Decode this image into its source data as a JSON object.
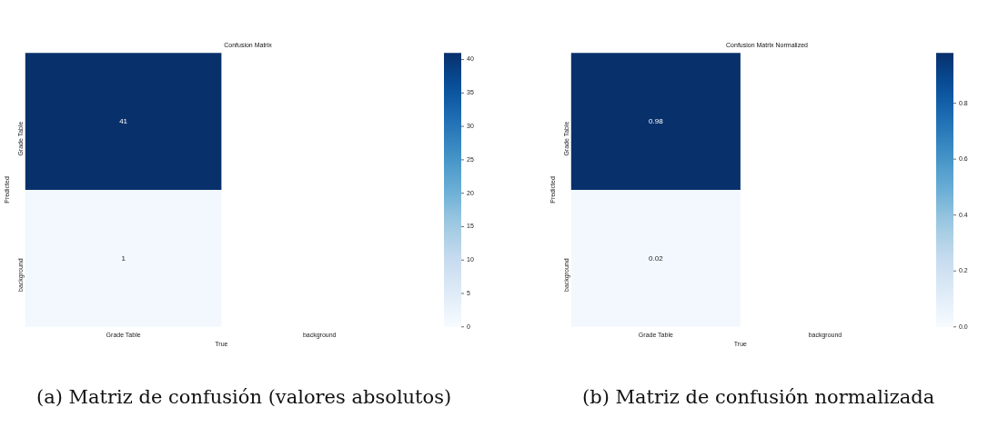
{
  "chart_data": [
    {
      "type": "heatmap",
      "title": "Confusion Matrix",
      "xlabel": "True",
      "ylabel": "Predicted",
      "categories": [
        "Grade Table",
        "background"
      ],
      "y_categories": [
        "Grade Table",
        "background"
      ],
      "cells": [
        [
          41,
          null
        ],
        [
          1,
          null
        ]
      ],
      "clim": [
        0,
        41
      ],
      "cticks": [
        0,
        5,
        10,
        15,
        20,
        25,
        30,
        35,
        40
      ],
      "data_labels": true,
      "annotations": [
        "(a) Matriz de confusión (valores absolutos)"
      ]
    },
    {
      "type": "heatmap",
      "title": "Confusion Matrix Normalized",
      "xlabel": "True",
      "ylabel": "Predicted",
      "categories": [
        "Grade Table",
        "background"
      ],
      "y_categories": [
        "Grade Table",
        "background"
      ],
      "cells": [
        [
          0.98,
          null
        ],
        [
          0.02,
          null
        ]
      ],
      "clim": [
        0,
        0.98
      ],
      "cticks": [
        {
          "value": 0,
          "label": "0.0"
        },
        {
          "value": 0.2,
          "label": "0.2"
        },
        {
          "value": 0.4,
          "label": "0.4"
        },
        {
          "value": 0.6,
          "label": "0.6"
        },
        {
          "value": 0.8,
          "label": "0.8"
        }
      ],
      "data_labels": true,
      "annotations": [
        "(b) Matriz de confusión normalizada"
      ]
    }
  ]
}
